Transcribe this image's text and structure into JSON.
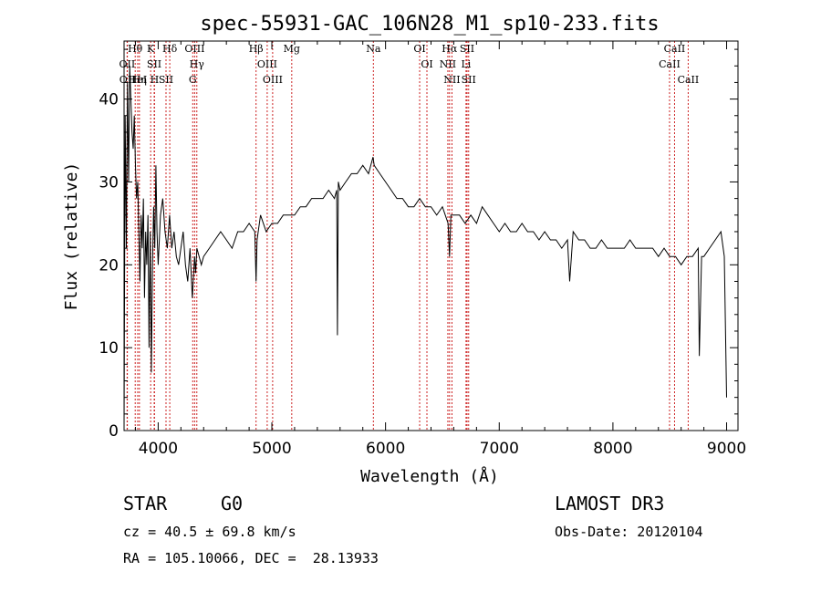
{
  "chart_data": {
    "type": "line",
    "title": "spec-55931-GAC_106N28_M1_sp10-233.fits",
    "xlabel": "Wavelength (Å)",
    "ylabel": "Flux (relative)",
    "xlim": [
      3700,
      9100
    ],
    "ylim": [
      0,
      47
    ],
    "xticks": [
      4000,
      5000,
      6000,
      7000,
      8000,
      9000
    ],
    "yticks": [
      0,
      10,
      20,
      30,
      40
    ],
    "grid": false,
    "series": [
      {
        "name": "spectrum",
        "x": [
          3700,
          3710,
          3720,
          3730,
          3740,
          3750,
          3760,
          3770,
          3780,
          3790,
          3800,
          3810,
          3820,
          3830,
          3840,
          3850,
          3860,
          3870,
          3880,
          3890,
          3900,
          3910,
          3920,
          3930,
          3940,
          3950,
          3960,
          3970,
          3980,
          3990,
          4000,
          4020,
          4040,
          4060,
          4080,
          4100,
          4120,
          4140,
          4160,
          4180,
          4200,
          4220,
          4240,
          4260,
          4280,
          4300,
          4320,
          4330,
          4340,
          4360,
          4380,
          4400,
          4450,
          4500,
          4550,
          4600,
          4650,
          4700,
          4750,
          4800,
          4850,
          4861,
          4870,
          4900,
          4950,
          5000,
          5050,
          5100,
          5150,
          5200,
          5250,
          5300,
          5350,
          5400,
          5450,
          5500,
          5550,
          5570,
          5577,
          5585,
          5600,
          5650,
          5700,
          5750,
          5800,
          5850,
          5890,
          5900,
          5950,
          6000,
          6050,
          6100,
          6150,
          6200,
          6250,
          6300,
          6350,
          6400,
          6450,
          6500,
          6550,
          6563,
          6575,
          6600,
          6650,
          6700,
          6750,
          6800,
          6850,
          6900,
          6950,
          7000,
          7050,
          7100,
          7150,
          7200,
          7250,
          7300,
          7350,
          7400,
          7450,
          7500,
          7550,
          7600,
          7620,
          7650,
          7700,
          7750,
          7800,
          7850,
          7900,
          7950,
          8000,
          8050,
          8100,
          8150,
          8200,
          8250,
          8300,
          8350,
          8400,
          8450,
          8500,
          8550,
          8600,
          8650,
          8700,
          8750,
          8760,
          8780,
          8800,
          8850,
          8900,
          8950,
          8980,
          9000
        ],
        "values": [
          0.5,
          38,
          22,
          42,
          30,
          44,
          40,
          36,
          34,
          38,
          32,
          28,
          30,
          24,
          18,
          26,
          22,
          28,
          16,
          24,
          20,
          26,
          10,
          24,
          7,
          20,
          27,
          22,
          32,
          24,
          20,
          26,
          28,
          24,
          22,
          26,
          22,
          24,
          21,
          20,
          22,
          24,
          20,
          18,
          22,
          16,
          21,
          19,
          22,
          21,
          20,
          21,
          22,
          23,
          24,
          23,
          22,
          24,
          24,
          25,
          24,
          18,
          23,
          26,
          24,
          25,
          25,
          26,
          26,
          26,
          27,
          27,
          28,
          28,
          28,
          29,
          28,
          29,
          11.5,
          30,
          29,
          30,
          31,
          31,
          32,
          31,
          33,
          32,
          31,
          30,
          29,
          28,
          28,
          27,
          27,
          28,
          27,
          27,
          26,
          27,
          25,
          21,
          26,
          26,
          26,
          25,
          26,
          25,
          27,
          26,
          25,
          24,
          25,
          24,
          24,
          25,
          24,
          24,
          23,
          24,
          23,
          23,
          22,
          23,
          18,
          24,
          23,
          23,
          22,
          22,
          23,
          22,
          22,
          22,
          22,
          23,
          22,
          22,
          22,
          22,
          21,
          22,
          21,
          21,
          20,
          21,
          21,
          22,
          9,
          21,
          21,
          22,
          23,
          24,
          21,
          4
        ]
      }
    ],
    "lines": [
      {
        "label": "Hθ",
        "wave": 3798
      },
      {
        "label": "OII",
        "wave": 3727
      },
      {
        "label": "OII",
        "wave": 3729
      },
      {
        "label": "HeI",
        "wave": 3820
      },
      {
        "label": "Hη",
        "wave": 3835
      },
      {
        "label": "K",
        "wave": 3934
      },
      {
        "label": "SII",
        "wave": 3965
      },
      {
        "label": "H",
        "wave": 3968
      },
      {
        "label": "Hδ",
        "wave": 4102
      },
      {
        "label": "SII",
        "wave": 4069
      },
      {
        "label": "OIII",
        "wave": 4321
      },
      {
        "label": "Hγ",
        "wave": 4340
      },
      {
        "label": "G",
        "wave": 4304
      },
      {
        "label": "Hβ",
        "wave": 4861
      },
      {
        "label": "OIII",
        "wave": 4959
      },
      {
        "label": "OIII",
        "wave": 5007
      },
      {
        "label": "Mg",
        "wave": 5175
      },
      {
        "label": "Na",
        "wave": 5893
      },
      {
        "label": "OI",
        "wave": 6300
      },
      {
        "label": "OI",
        "wave": 6364
      },
      {
        "label": "Hα",
        "wave": 6563
      },
      {
        "label": "NII",
        "wave": 6548
      },
      {
        "label": "NII",
        "wave": 6584
      },
      {
        "label": "SII",
        "wave": 6717
      },
      {
        "label": "Li",
        "wave": 6708
      },
      {
        "label": "SII",
        "wave": 6731
      },
      {
        "label": "CaII",
        "wave": 8542
      },
      {
        "label": "CaII",
        "wave": 8498
      },
      {
        "label": "CaII",
        "wave": 8662
      }
    ],
    "line_color": "#cc2222"
  },
  "info": {
    "class_label": "STAR",
    "subclass": "G0",
    "survey": "LAMOST DR3",
    "cz_line": "cz = 40.5 ± 69.8 km/s",
    "obs_date_line": "Obs-Date: 20120104",
    "coords_line": "RA = 105.10066, DEC =  28.13933"
  }
}
